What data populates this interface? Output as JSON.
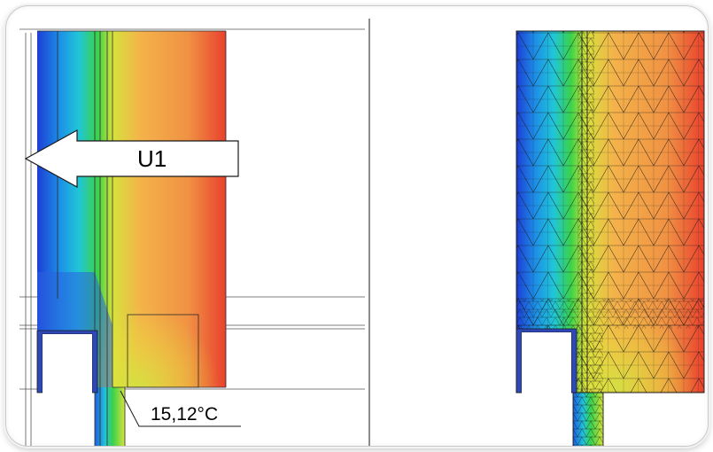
{
  "annotations": {
    "section_label": "U1",
    "min_temperature": "15,12°C"
  },
  "colors": {
    "cold": "#1f3fd6",
    "cyan": "#18b7e8",
    "green": "#38d24a",
    "yellow": "#e6e33a",
    "warm": "#f2a24a",
    "hot": "#e94a2f"
  }
}
